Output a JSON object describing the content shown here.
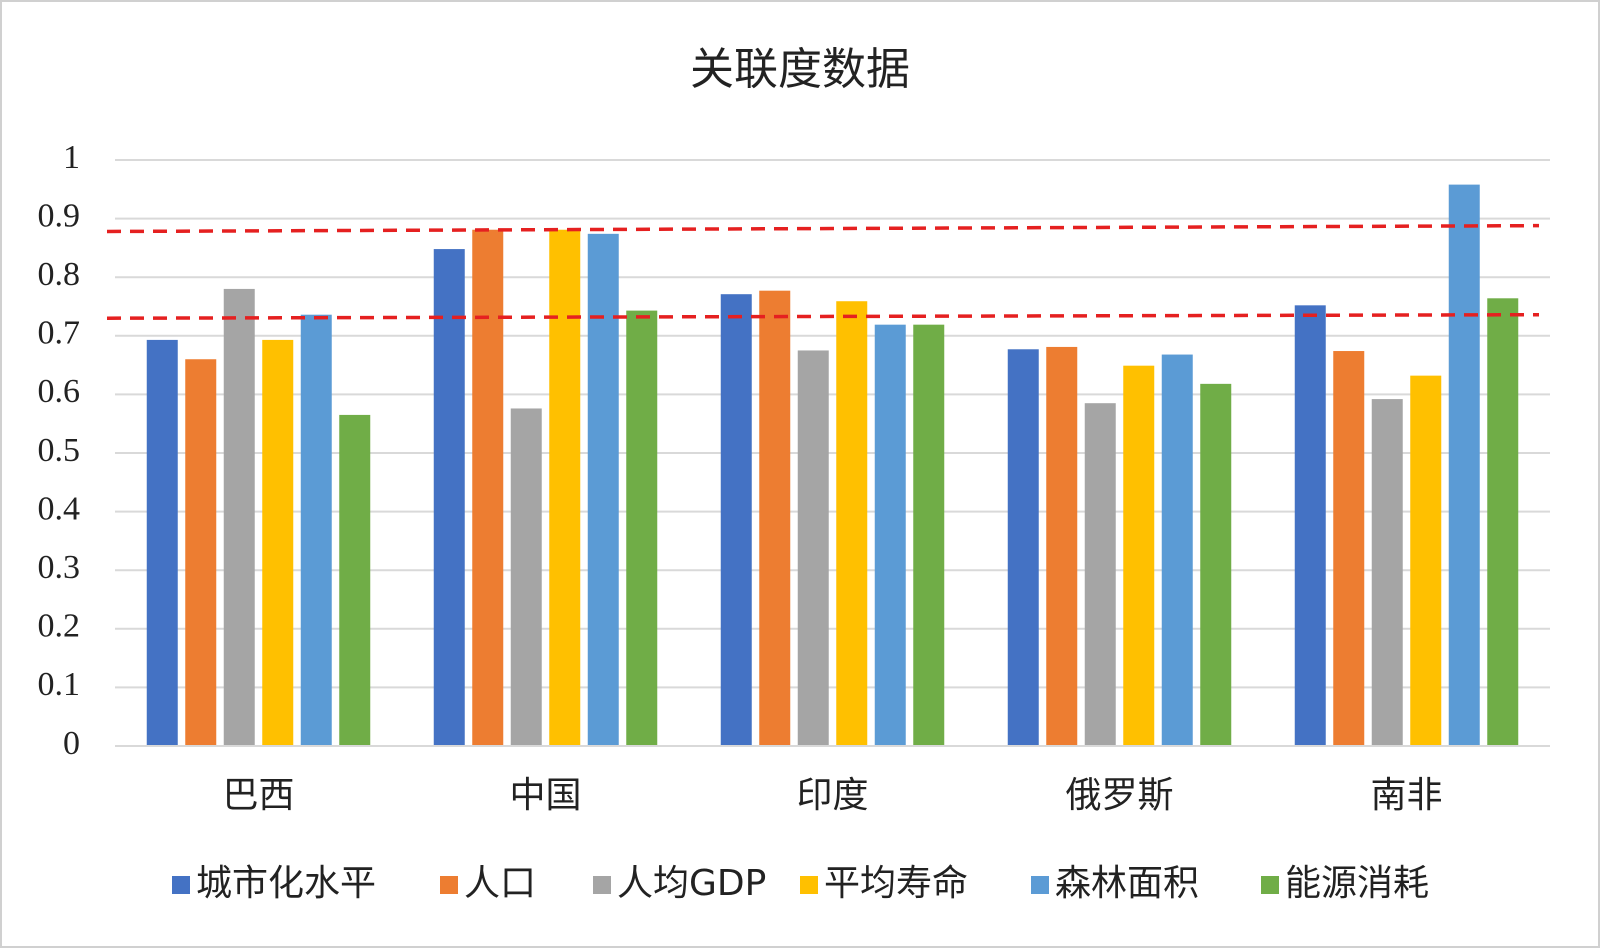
{
  "chart_data": {
    "type": "bar",
    "title": "关联度数据",
    "categories": [
      "巴西",
      "中国",
      "印度",
      "俄罗斯",
      "南非"
    ],
    "series": [
      {
        "name": "城市化水平",
        "color": "#4472c4",
        "values": [
          0.693,
          0.848,
          0.771,
          0.677,
          0.752
        ]
      },
      {
        "name": "人口",
        "color": "#ed7d31",
        "values": [
          0.66,
          0.881,
          0.777,
          0.681,
          0.674
        ]
      },
      {
        "name": "人均GDP",
        "color": "#a5a5a5",
        "values": [
          0.78,
          0.576,
          0.675,
          0.585,
          0.592
        ]
      },
      {
        "name": "平均寿命",
        "color": "#ffc000",
        "values": [
          0.693,
          0.881,
          0.759,
          0.649,
          0.632
        ]
      },
      {
        "name": "森林面积",
        "color": "#5b9bd5",
        "values": [
          0.736,
          0.874,
          0.719,
          0.668,
          0.958
        ]
      },
      {
        "name": "能源消耗",
        "color": "#70ad47",
        "values": [
          0.565,
          0.743,
          0.719,
          0.618,
          0.764
        ]
      }
    ],
    "ref_lines": [
      {
        "color": "#e52020",
        "values": [
          0.878,
          0.888
        ]
      },
      {
        "color": "#e52020",
        "values": [
          0.73,
          0.736
        ]
      }
    ],
    "ylim": [
      0,
      1
    ],
    "yticks": [
      0,
      0.1,
      0.2,
      0.3,
      0.4,
      0.5,
      0.6,
      0.7,
      0.8,
      0.9,
      1
    ],
    "grid": true,
    "legend": "bottom"
  }
}
